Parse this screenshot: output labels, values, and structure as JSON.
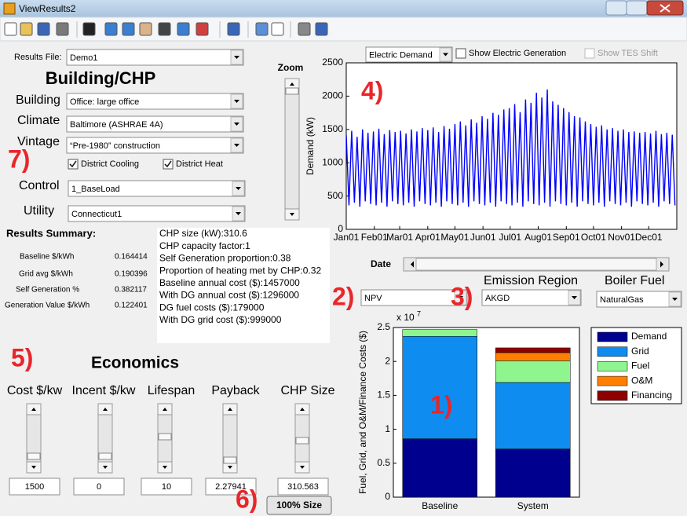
{
  "window": {
    "title": "ViewResults2"
  },
  "annotations": [
    "1)",
    "2)",
    "3)",
    "4)",
    "5)",
    "6)",
    "7)"
  ],
  "results_file": {
    "label": "Results File:",
    "value": "Demo1"
  },
  "building_chp": {
    "heading": "Building/CHP",
    "fields": [
      {
        "label": "Building",
        "value": "Office: large office"
      },
      {
        "label": "Climate",
        "value": "Baltimore (ASHRAE 4A)"
      },
      {
        "label": "Vintage",
        "value": "“Pre-1980” construction"
      },
      {
        "label": "Control",
        "value": "1_BaseLoad"
      },
      {
        "label": "Utility",
        "value": "Connecticut1"
      }
    ],
    "checkboxes": [
      "District Cooling",
      "District Heat"
    ]
  },
  "zoom": {
    "label": "Zoom"
  },
  "results_summary": {
    "heading": "Results Summary:",
    "rows": [
      [
        "Baseline $/kWh",
        "0.164414"
      ],
      [
        "Grid avg $/kWh",
        "0.190396"
      ],
      [
        "Self Generation %",
        "0.382117"
      ],
      [
        "Generation Value $/kWh",
        "0.122401"
      ]
    ],
    "details": [
      "CHP size (kW):310.6",
      "CHP capacity factor:1",
      "Self Generation proportion:0.38",
      "Proportion of heating met by CHP:0.32",
      "Baseline annual cost ($):1457000",
      "With DG annual cost ($):1296000",
      "DG fuel costs ($):179000",
      "With DG grid cost ($):999000"
    ]
  },
  "economics": {
    "heading": "Economics",
    "inputs": [
      {
        "label": "Cost $/kw",
        "value": "1500"
      },
      {
        "label": "Incent $/kw",
        "value": "0"
      },
      {
        "label": "Lifespan",
        "value": "10"
      },
      {
        "label": "Payback",
        "value": "2.27941"
      },
      {
        "label": "CHP Size",
        "value": "310.563"
      }
    ],
    "button": "100% Size"
  },
  "plot_controls": {
    "plot_select": "Electric Demand",
    "show_generation": "Show Electric Generation",
    "show_tes": "Show TES Shift",
    "date_label": "Date",
    "metric": "NPV",
    "emission_region": {
      "label": "Emission Region",
      "value": "AKGD"
    },
    "boiler_fuel": {
      "label": "Boiler Fuel",
      "value": "NaturalGas"
    }
  },
  "chart_data": [
    {
      "type": "line",
      "ylabel": "Demand (kW)",
      "x": [
        1,
        4,
        7,
        10,
        13,
        16,
        19,
        22,
        25,
        28,
        31,
        34,
        37,
        40,
        43,
        46,
        49,
        52,
        55,
        58,
        61,
        64,
        67,
        70,
        73,
        76,
        79,
        82,
        85,
        88,
        91,
        94,
        97,
        100,
        103,
        106,
        109,
        112,
        115,
        118,
        121,
        124,
        127,
        130,
        133,
        136,
        139,
        142,
        145,
        148,
        151,
        154,
        157,
        160,
        163,
        166,
        169,
        172,
        175,
        178,
        181,
        184,
        187,
        190,
        193,
        196,
        199,
        202,
        205,
        208,
        211,
        214,
        217,
        220,
        223,
        226,
        229,
        232,
        235,
        238,
        241,
        244,
        247,
        250,
        253,
        256,
        259,
        262,
        265,
        268,
        271,
        274,
        277,
        280,
        283,
        286,
        289,
        292,
        295,
        298,
        301,
        304,
        307,
        310,
        313,
        316,
        319,
        322,
        325,
        328,
        331,
        334,
        337,
        340,
        343,
        346,
        349,
        352,
        355,
        358,
        361,
        364
      ],
      "series": [
        {
          "color": "#0000ff",
          "values": [
            1420,
            360,
            1480,
            400,
            1390,
            340,
            1500,
            420,
            1450,
            380,
            1470,
            360,
            1510,
            400,
            1430,
            340,
            1490,
            420,
            1460,
            380,
            1480,
            360,
            1440,
            400,
            1500,
            340,
            1470,
            420,
            1520,
            380,
            1490,
            360,
            1530,
            400,
            1460,
            340,
            1550,
            420,
            1510,
            380,
            1580,
            360,
            1620,
            400,
            1560,
            340,
            1650,
            420,
            1600,
            380,
            1700,
            360,
            1660,
            400,
            1750,
            340,
            1720,
            420,
            1800,
            380,
            1820,
            360,
            1880,
            400,
            1760,
            340,
            1950,
            420,
            1900,
            380,
            2050,
            360,
            1980,
            400,
            2100,
            340,
            1920,
            420,
            1870,
            380,
            1820,
            360,
            1760,
            400,
            1700,
            340,
            1680,
            420,
            1620,
            380,
            1580,
            360,
            1540,
            400,
            1560,
            340,
            1500,
            420,
            1520,
            380,
            1480,
            360,
            1500,
            400,
            1460,
            340,
            1470,
            420,
            1450,
            380,
            1460,
            360,
            1440,
            400,
            1480,
            340,
            1430,
            420,
            1450,
            380,
            1420,
            360
          ]
        }
      ],
      "xlim": [
        1,
        366
      ],
      "xticks": [
        {
          "value": 1,
          "label": "Jan01"
        },
        {
          "value": 32,
          "label": "Feb01"
        },
        {
          "value": 60,
          "label": "Mar01"
        },
        {
          "value": 91,
          "label": "Apr01"
        },
        {
          "value": 121,
          "label": "May01"
        },
        {
          "value": 152,
          "label": "Jun01"
        },
        {
          "value": 182,
          "label": "Jul01"
        },
        {
          "value": 213,
          "label": "Aug01"
        },
        {
          "value": 244,
          "label": "Sep01"
        },
        {
          "value": 274,
          "label": "Oct01"
        },
        {
          "value": 305,
          "label": "Nov01"
        },
        {
          "value": 335,
          "label": "Dec01"
        }
      ],
      "ylim": [
        0,
        2500
      ],
      "yticks": [
        0,
        500,
        1000,
        1500,
        2000,
        2500
      ]
    },
    {
      "type": "stacked_bar",
      "ylabel": "Fuel, Grid, and O&M/Finance Costs ($)",
      "y_scale": {
        "base": "x 10",
        "exponent": "7"
      },
      "categories": [
        "Baseline",
        "System"
      ],
      "series": [
        {
          "name": "Demand",
          "color": "#00008f",
          "values": [
            0.86,
            0.71
          ]
        },
        {
          "name": "Grid",
          "color": "#0f8cef",
          "values": [
            1.51,
            0.98
          ]
        },
        {
          "name": "Fuel",
          "color": "#8ff58f",
          "values": [
            0.1,
            0.32
          ]
        },
        {
          "name": "O&M",
          "color": "#ff8000",
          "values": [
            0,
            0.12
          ]
        },
        {
          "name": "Financing",
          "color": "#8f0000",
          "values": [
            0,
            0.07
          ]
        }
      ],
      "ylim": [
        0,
        2.5
      ],
      "yticks": [
        0,
        0.5,
        1,
        1.5,
        2,
        2.5
      ],
      "legend": "outside-right"
    }
  ]
}
